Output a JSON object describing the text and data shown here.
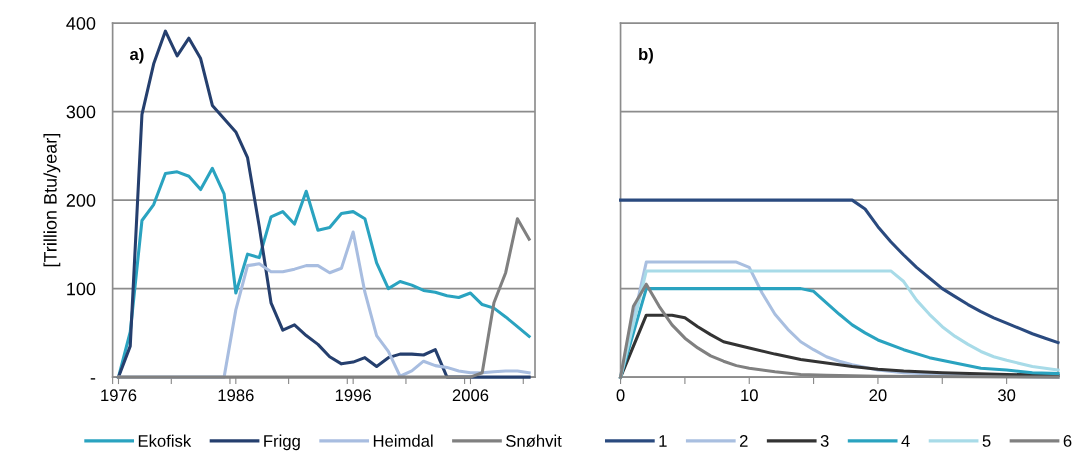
{
  "chart_data": [
    {
      "type": "line",
      "ylabel": "[Trillion Btu/year]",
      "annotations": [
        "a)"
      ],
      "x": [
        1976,
        1977,
        1978,
        1979,
        1980,
        1981,
        1982,
        1983,
        1984,
        1985,
        1986,
        1987,
        1988,
        1989,
        1990,
        1991,
        1992,
        1993,
        1994,
        1995,
        1996,
        1997,
        1998,
        1999,
        2000,
        2001,
        2002,
        2003,
        2004,
        2005,
        2006,
        2007,
        2008,
        2009,
        2010,
        2011
      ],
      "series": [
        {
          "name": "Ekofisk",
          "color": "#2aa3c0",
          "values": [
            0,
            51,
            177,
            195,
            230,
            232,
            227,
            212,
            236,
            207,
            95,
            139,
            135,
            181,
            187,
            173,
            210,
            166,
            169,
            185,
            187,
            179,
            129,
            100,
            108,
            104,
            98,
            96,
            92,
            90,
            95,
            82,
            78,
            68,
            57,
            46
          ]
        },
        {
          "name": "Frigg",
          "color": "#253f6e",
          "values": [
            0,
            35,
            297,
            354,
            391,
            363,
            383,
            360,
            307,
            292,
            277,
            248,
            170,
            84,
            53,
            59,
            47,
            37,
            23,
            15,
            17,
            22,
            12,
            22,
            26,
            26,
            25,
            31,
            0,
            0,
            0,
            0,
            0,
            0,
            0,
            0
          ]
        },
        {
          "name": "Heimdal",
          "color": "#a8bde0",
          "values": [
            0,
            0,
            0,
            0,
            0,
            0,
            0,
            0,
            0,
            0,
            76,
            126,
            128,
            119,
            119,
            122,
            126,
            126,
            118,
            123,
            164,
            96,
            47,
            29,
            1,
            7,
            18,
            13,
            11,
            7,
            5,
            5,
            6,
            7,
            7,
            5
          ]
        },
        {
          "name": "Snøhvit",
          "color": "#808080",
          "values": [
            0,
            0,
            0,
            0,
            0,
            0,
            0,
            0,
            0,
            0,
            0,
            0,
            0,
            0,
            0,
            0,
            0,
            0,
            0,
            0,
            0,
            0,
            0,
            0,
            0,
            0,
            0,
            0,
            0,
            0,
            0,
            5,
            84,
            118,
            179,
            156
          ]
        }
      ],
      "xlim": [
        1975.5,
        2011.5
      ],
      "xticks": [
        {
          "value": 1975.5,
          "label": null
        },
        {
          "value": 1976,
          "label": "1976"
        },
        {
          "value": 1980.5,
          "label": null
        },
        {
          "value": 1985.5,
          "label": null
        },
        {
          "value": 1986,
          "label": "1986"
        },
        {
          "value": 1990.5,
          "label": null
        },
        {
          "value": 1995.5,
          "label": null
        },
        {
          "value": 1996,
          "label": "1996"
        },
        {
          "value": 2000.5,
          "label": null
        },
        {
          "value": 2005.5,
          "label": null
        },
        {
          "value": 2006,
          "label": "2006"
        },
        {
          "value": 2010.5,
          "label": null
        }
      ],
      "ylim": [
        0,
        400
      ],
      "yticks": [
        {
          "value": 0,
          "label": "-"
        },
        100,
        200,
        300,
        400
      ],
      "grid": "y",
      "legend": "bottom",
      "marker": "none",
      "line_style": "solid"
    },
    {
      "type": "line",
      "annotations": [
        "b)"
      ],
      "tick_labels": "x",
      "series": [
        {
          "name": "1",
          "color": "#2a4a7f",
          "x": [
            0,
            18,
            19,
            20,
            21,
            22,
            23,
            24,
            25,
            26,
            27,
            28,
            29,
            30,
            31,
            32,
            33,
            34
          ],
          "values": [
            200,
            200,
            190,
            170,
            153,
            138,
            124,
            112,
            100,
            91,
            82,
            74,
            67,
            61,
            55,
            49,
            44,
            39
          ]
        },
        {
          "name": "2",
          "color": "#a9bfe0",
          "x": [
            0,
            2,
            9,
            10,
            11,
            12,
            13,
            14,
            15,
            16,
            17,
            18,
            20,
            22,
            25,
            30,
            34
          ],
          "values": [
            0,
            130,
            130,
            124,
            95,
            71,
            54,
            40,
            31,
            23,
            18,
            14,
            8,
            5,
            3,
            1,
            0
          ]
        },
        {
          "name": "3",
          "color": "#333333",
          "x": [
            0,
            2,
            4,
            5,
            6,
            7,
            8,
            10,
            12,
            14,
            16,
            18,
            20,
            22,
            25,
            30,
            34
          ],
          "values": [
            0,
            70,
            70,
            67,
            57,
            48,
            40,
            33,
            26,
            20,
            16,
            12,
            9,
            7,
            5,
            3,
            2
          ]
        },
        {
          "name": "4",
          "color": "#2aa3c0",
          "x": [
            0,
            2,
            14,
            15,
            16,
            17,
            18,
            19,
            20,
            22,
            24,
            26,
            28,
            30,
            32,
            34
          ],
          "values": [
            0,
            100,
            100,
            97,
            84,
            71,
            59,
            50,
            42,
            31,
            22,
            16,
            10,
            8,
            5,
            4
          ]
        },
        {
          "name": "5",
          "color": "#a8dbe8",
          "x": [
            0,
            2,
            21,
            22,
            23,
            24,
            25,
            26,
            27,
            28,
            29,
            30,
            32,
            34
          ],
          "values": [
            0,
            120,
            120,
            108,
            87,
            71,
            57,
            46,
            37,
            29,
            23,
            19,
            12,
            8
          ]
        },
        {
          "name": "6",
          "color": "#808080",
          "x": [
            0,
            1,
            2,
            3,
            4,
            5,
            6,
            7,
            8,
            9,
            10,
            12,
            14,
            16,
            20,
            34
          ],
          "values": [
            0,
            80,
            105,
            80,
            59,
            44,
            33,
            24,
            18,
            13,
            10,
            6,
            3,
            2,
            1,
            0
          ]
        }
      ],
      "xlim": [
        0,
        34
      ],
      "xticks": [
        0,
        {
          "value": 5,
          "label": null
        },
        10,
        {
          "value": 15,
          "label": null
        },
        20,
        {
          "value": 25,
          "label": null
        },
        30
      ],
      "ylim": [
        0,
        400
      ],
      "yticks": [
        {
          "value": 0,
          "label": null
        },
        {
          "value": 100,
          "label": null
        },
        {
          "value": 200,
          "label": null
        },
        {
          "value": 300,
          "label": null
        },
        {
          "value": 400,
          "label": null
        }
      ],
      "grid": "y",
      "legend": "bottom",
      "marker": "none",
      "line_style": "solid"
    }
  ]
}
